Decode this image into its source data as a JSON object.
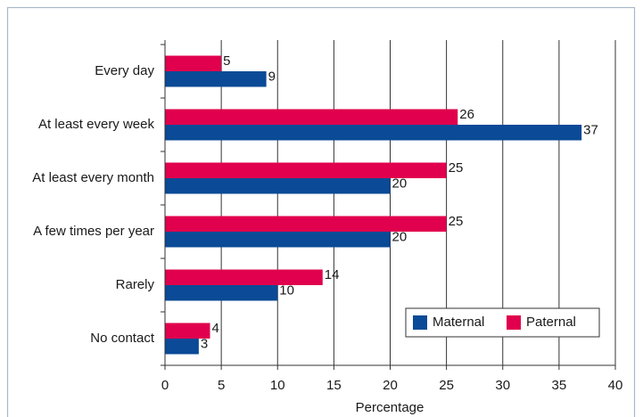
{
  "chart_data": {
    "type": "bar",
    "orientation": "horizontal",
    "categories": [
      "Every day",
      "At least every week",
      "At least every month",
      "A few times per year",
      "Rarely",
      "No contact"
    ],
    "series": [
      {
        "name": "Maternal",
        "color": "#0a4a96",
        "values": [
          9,
          37,
          20,
          20,
          10,
          3
        ]
      },
      {
        "name": "Paternal",
        "color": "#e0004d",
        "values": [
          5,
          26,
          25,
          25,
          14,
          4
        ]
      }
    ],
    "xlabel": "Percentage",
    "xlim": [
      0,
      40
    ],
    "xticks": [
      0,
      5,
      10,
      15,
      20,
      25,
      30,
      35,
      40
    ],
    "grid": true,
    "legend": "lower right"
  }
}
